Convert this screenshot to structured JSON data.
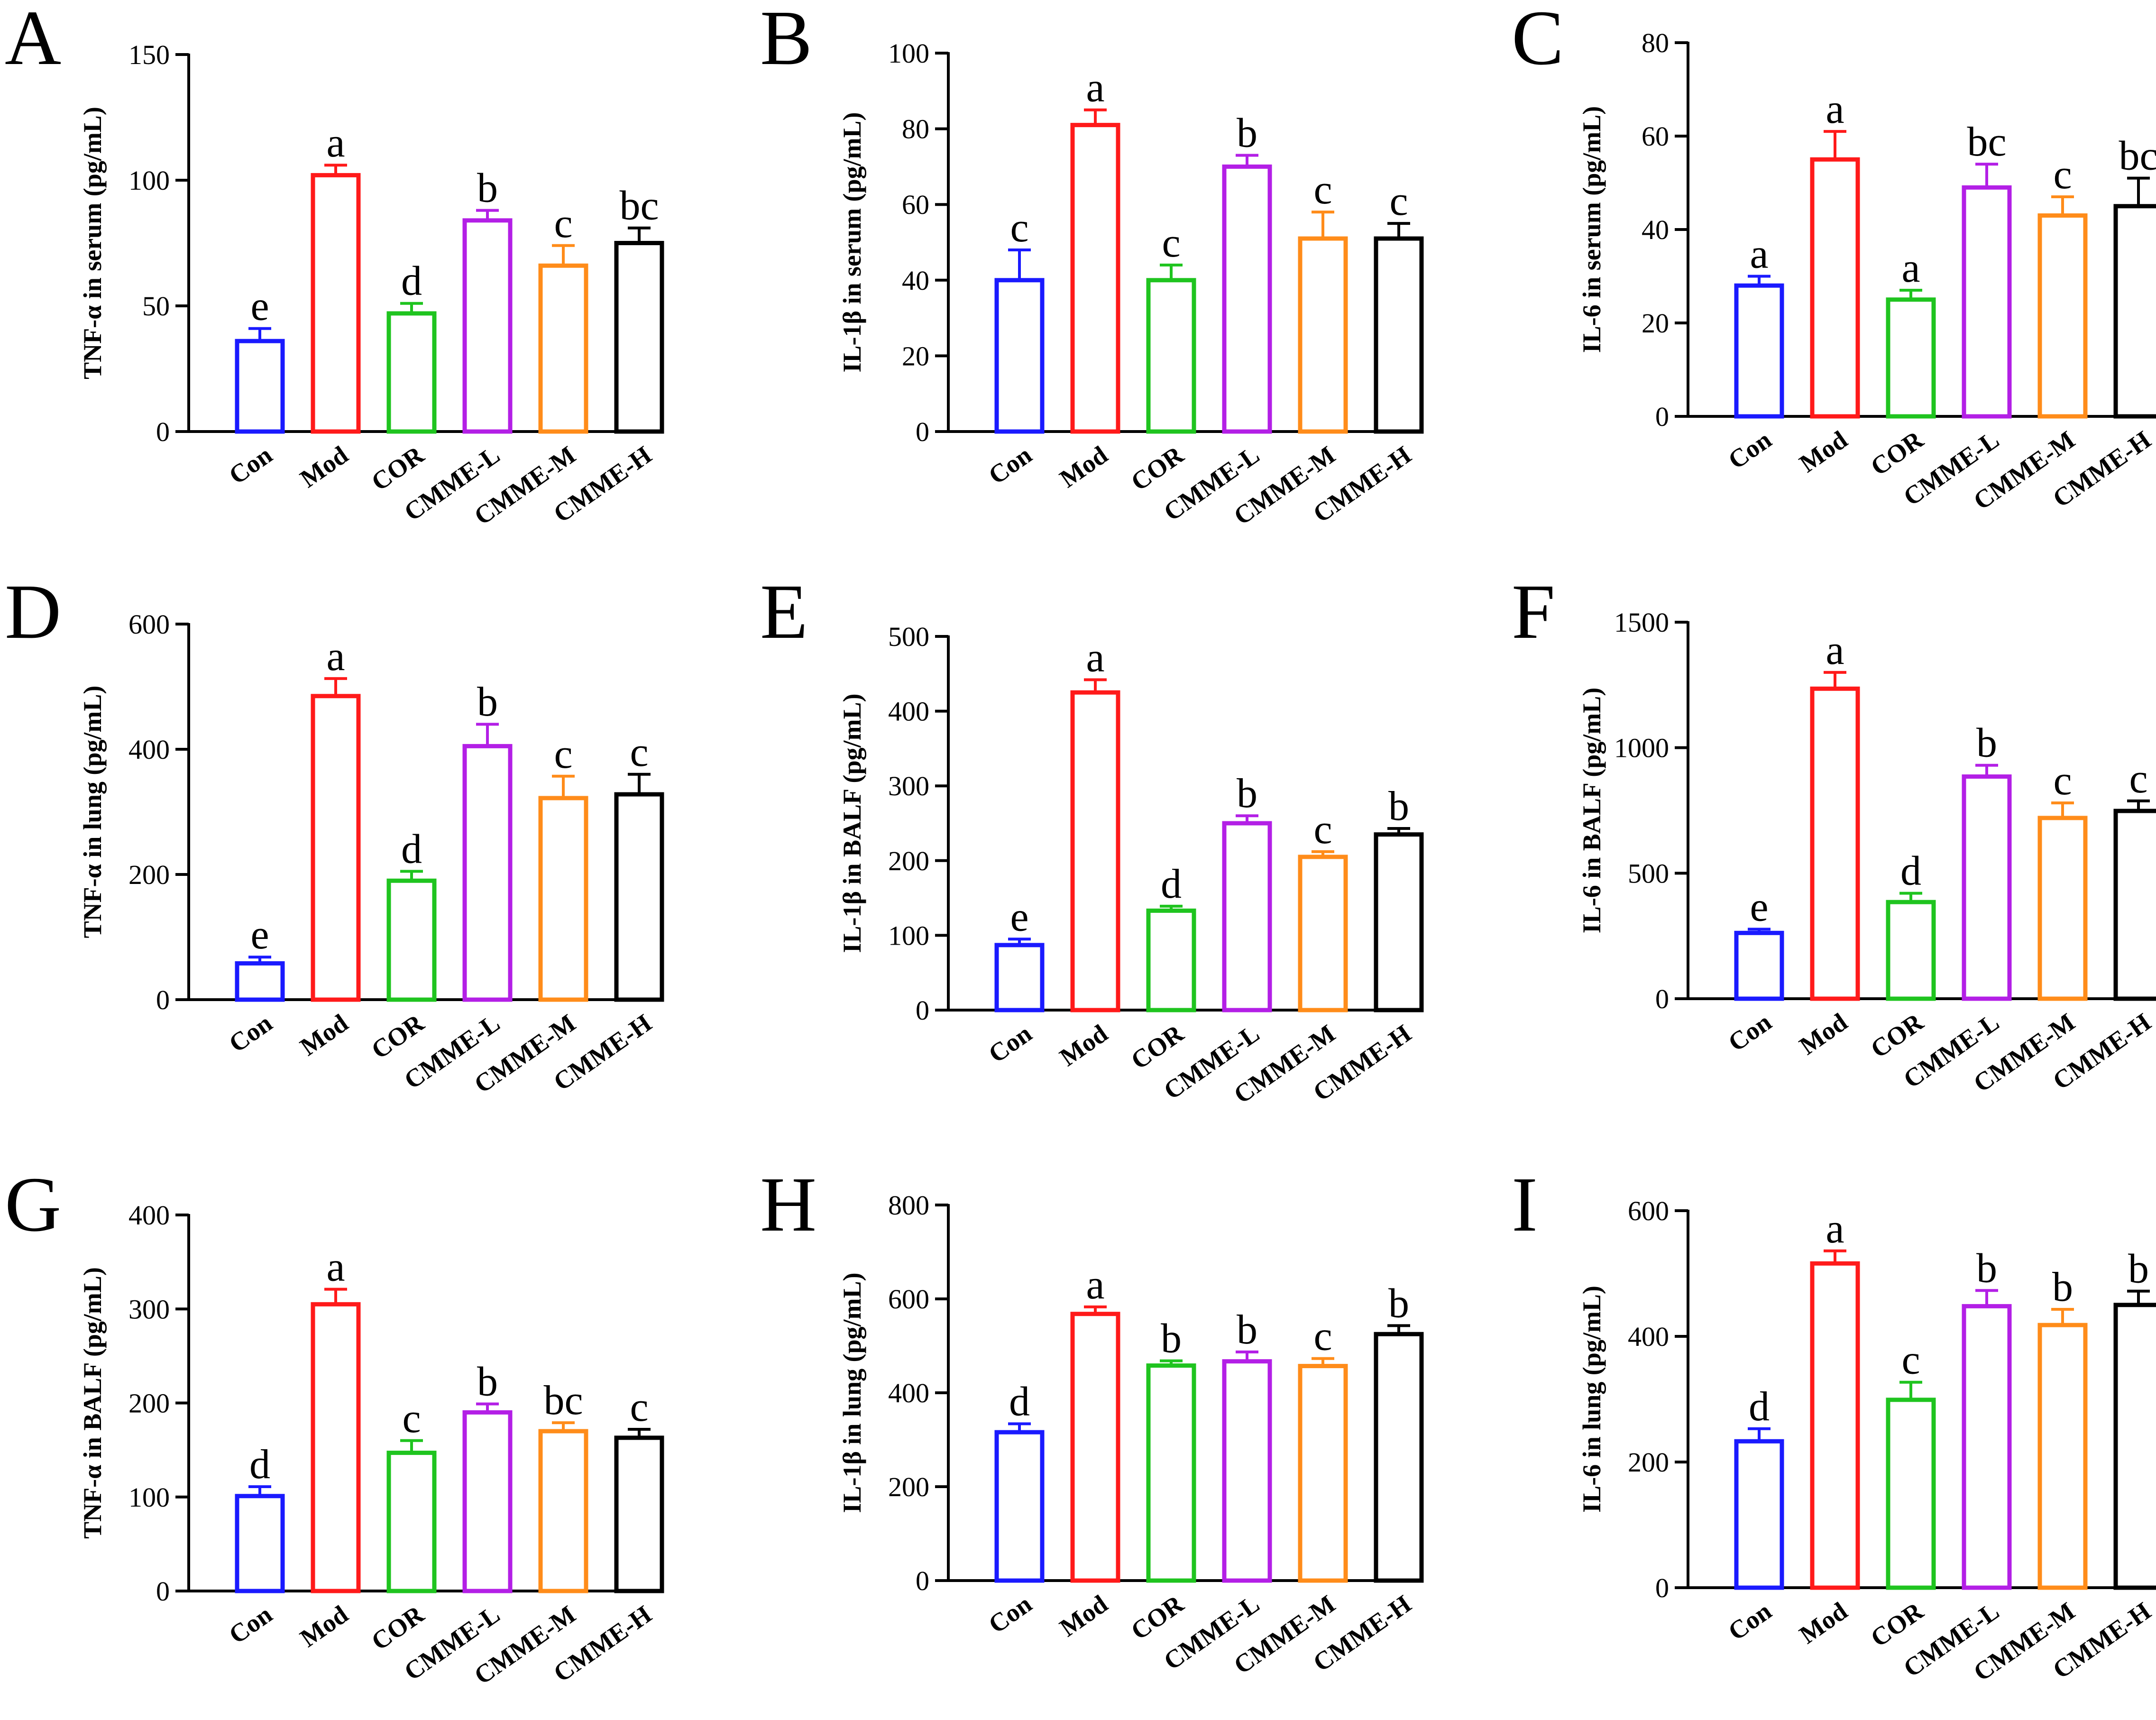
{
  "figure": {
    "categories": [
      "Con",
      "Mod",
      "COR",
      "CMME-L",
      "CMME-M",
      "CMME-H"
    ],
    "colors": [
      "#1a1aff",
      "#ff1a1a",
      "#1fc41f",
      "#b31fe6",
      "#ff8c1a",
      "#000000"
    ]
  },
  "chart_data": [
    {
      "panel": "A",
      "type": "bar",
      "ylabel": "TNF-α in serum (pg/mL)",
      "ylim": [
        0,
        150
      ],
      "ticks": [
        0,
        50,
        100,
        150
      ],
      "categories": [
        "Con",
        "Mod",
        "COR",
        "CMME-L",
        "CMME-M",
        "CMME-H"
      ],
      "values": [
        36,
        102,
        47,
        84,
        66,
        75
      ],
      "errors": [
        5,
        4,
        4,
        4,
        8,
        6
      ],
      "letters": [
        "e",
        "a",
        "d",
        "b",
        "c",
        "bc"
      ]
    },
    {
      "panel": "B",
      "type": "bar",
      "ylabel": "IL-1β in serum (pg/mL)",
      "ylim": [
        0,
        100
      ],
      "ticks": [
        0,
        20,
        40,
        60,
        80,
        100
      ],
      "categories": [
        "Con",
        "Mod",
        "COR",
        "CMME-L",
        "CMME-M",
        "CMME-H"
      ],
      "values": [
        40,
        81,
        40,
        70,
        51,
        51
      ],
      "errors": [
        8,
        4,
        4,
        3,
        7,
        4
      ],
      "letters": [
        "c",
        "a",
        "c",
        "b",
        "c",
        "c"
      ]
    },
    {
      "panel": "C",
      "type": "bar",
      "ylabel": "IL-6 in serum (pg/mL)",
      "ylim": [
        0,
        80
      ],
      "ticks": [
        0,
        20,
        40,
        60,
        80
      ],
      "categories": [
        "Con",
        "Mod",
        "COR",
        "CMME-L",
        "CMME-M",
        "CMME-H"
      ],
      "values": [
        28,
        55,
        25,
        49,
        43,
        45
      ],
      "errors": [
        2,
        6,
        2,
        5,
        4,
        6
      ],
      "letters": [
        "a",
        "a",
        "a",
        "bc",
        "c",
        "bc"
      ]
    },
    {
      "panel": "D",
      "type": "bar",
      "ylabel": "TNF-α in lung (pg/mL)",
      "ylim": [
        0,
        600
      ],
      "ticks": [
        0,
        200,
        400,
        600
      ],
      "categories": [
        "Con",
        "Mod",
        "COR",
        "CMME-L",
        "CMME-M",
        "CMME-H"
      ],
      "values": [
        58,
        485,
        190,
        405,
        322,
        328
      ],
      "errors": [
        10,
        28,
        15,
        35,
        35,
        32
      ],
      "letters": [
        "e",
        "a",
        "d",
        "b",
        "c",
        "c"
      ]
    },
    {
      "panel": "E",
      "type": "bar",
      "ylabel": "IL-1β in BALF (pg/mL)",
      "ylim": [
        0,
        500
      ],
      "ticks": [
        0,
        100,
        200,
        300,
        400,
        500
      ],
      "categories": [
        "Con",
        "Mod",
        "COR",
        "CMME-L",
        "CMME-M",
        "CMME-H"
      ],
      "values": [
        87,
        425,
        133,
        250,
        205,
        235
      ],
      "errors": [
        8,
        17,
        6,
        10,
        7,
        8
      ],
      "letters": [
        "e",
        "a",
        "d",
        "b",
        "c",
        "b"
      ]
    },
    {
      "panel": "F",
      "type": "bar",
      "ylabel": "IL-6 in BALF (pg/mL)",
      "ylim": [
        0,
        1500
      ],
      "ticks": [
        0,
        500,
        1000,
        1500
      ],
      "categories": [
        "Con",
        "Mod",
        "COR",
        "CMME-L",
        "CMME-M",
        "CMME-H"
      ],
      "values": [
        262,
        1235,
        385,
        885,
        720,
        748
      ],
      "errors": [
        15,
        65,
        35,
        45,
        60,
        40
      ],
      "letters": [
        "e",
        "a",
        "d",
        "b",
        "c",
        "c"
      ]
    },
    {
      "panel": "G",
      "type": "bar",
      "ylabel": "TNF-α in BALF (pg/mL)",
      "ylim": [
        0,
        400
      ],
      "ticks": [
        0,
        100,
        200,
        300,
        400
      ],
      "categories": [
        "Con",
        "Mod",
        "COR",
        "CMME-L",
        "CMME-M",
        "CMME-H"
      ],
      "values": [
        101,
        305,
        147,
        190,
        170,
        163
      ],
      "errors": [
        10,
        16,
        13,
        9,
        9,
        9
      ],
      "letters": [
        "d",
        "a",
        "c",
        "b",
        "bc",
        "c"
      ]
    },
    {
      "panel": "H",
      "type": "bar",
      "ylabel": "IL-1β in lung (pg/mL)",
      "ylim": [
        0,
        800
      ],
      "ticks": [
        0,
        200,
        400,
        600,
        800
      ],
      "categories": [
        "Con",
        "Mod",
        "COR",
        "CMME-L",
        "CMME-M",
        "CMME-H"
      ],
      "values": [
        316,
        568,
        458,
        467,
        457,
        525
      ],
      "errors": [
        18,
        15,
        10,
        20,
        16,
        18
      ],
      "letters": [
        "d",
        "a",
        "b",
        "b",
        "c",
        "b"
      ]
    },
    {
      "panel": "I",
      "type": "bar",
      "ylabel": "IL-6 in lung (pg/mL)",
      "ylim": [
        0,
        600
      ],
      "ticks": [
        0,
        200,
        400,
        600
      ],
      "categories": [
        "Con",
        "Mod",
        "COR",
        "CMME-L",
        "CMME-M",
        "CMME-H"
      ],
      "values": [
        233,
        516,
        299,
        448,
        418,
        450
      ],
      "errors": [
        20,
        20,
        28,
        25,
        25,
        22
      ],
      "letters": [
        "d",
        "a",
        "c",
        "b",
        "b",
        "b"
      ]
    }
  ]
}
